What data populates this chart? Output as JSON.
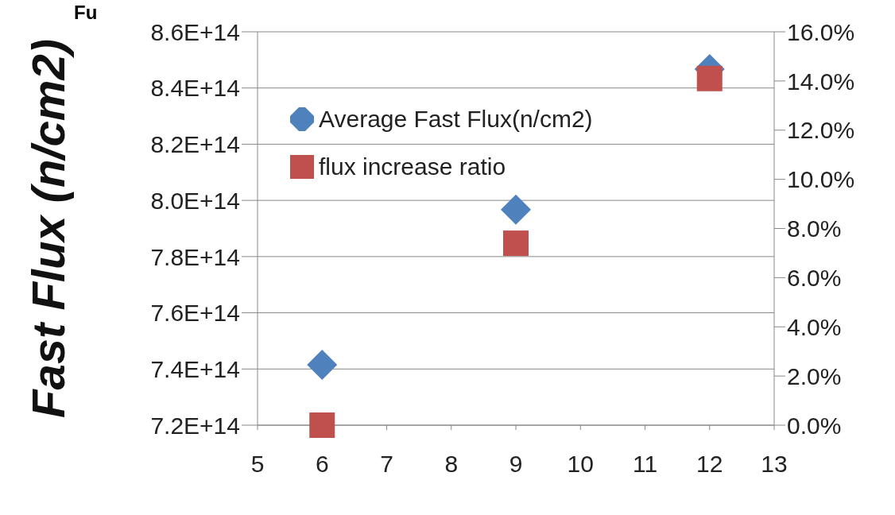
{
  "chart_data": {
    "type": "scatter",
    "ylabel": "Fast Flux (n/cm2)",
    "annotations": [
      "Fu"
    ],
    "x": [
      6,
      9,
      12
    ],
    "series": [
      {
        "name": "Average Fast Flux(n/cm2)",
        "color": "#4f81bd",
        "marker": "diamond",
        "values": [
          741500000000000.0,
          796700000000000.0,
          846700000000000.0
        ]
      },
      {
        "name": "flux increase ratio",
        "color": "#c0504d",
        "marker": "square",
        "axis": "y2",
        "values": [
          0,
          7.4,
          14.1
        ]
      }
    ],
    "xlim": [
      5,
      13
    ],
    "xticks": [
      5,
      6,
      7,
      8,
      9,
      10,
      11,
      12,
      13
    ],
    "ylim": [
      720000000000000.0,
      860000000000000.0
    ],
    "yticks": [
      {
        "value": 720000000000000.0,
        "label": "7.2E+14"
      },
      {
        "value": 740000000000000.0,
        "label": "7.4E+14"
      },
      {
        "value": 760000000000000.0,
        "label": "7.6E+14"
      },
      {
        "value": 780000000000000.0,
        "label": "7.8E+14"
      },
      {
        "value": 800000000000000.0,
        "label": "8.0E+14"
      },
      {
        "value": 820000000000000.0,
        "label": "8.2E+14"
      },
      {
        "value": 840000000000000.0,
        "label": "8.4E+14"
      },
      {
        "value": 860000000000000.0,
        "label": "8.6E+14"
      }
    ],
    "y2lim": [
      0,
      16
    ],
    "y2ticks": [
      {
        "value": 0,
        "label": "0.0%"
      },
      {
        "value": 2,
        "label": "2.0%"
      },
      {
        "value": 4,
        "label": "4.0%"
      },
      {
        "value": 6,
        "label": "6.0%"
      },
      {
        "value": 8,
        "label": "8.0%"
      },
      {
        "value": 10,
        "label": "10.0%"
      },
      {
        "value": 12,
        "label": "12.0%"
      },
      {
        "value": 14,
        "label": "14.0%"
      },
      {
        "value": 16,
        "label": "16.0%"
      }
    ],
    "grid": "y",
    "legend": "top left"
  }
}
